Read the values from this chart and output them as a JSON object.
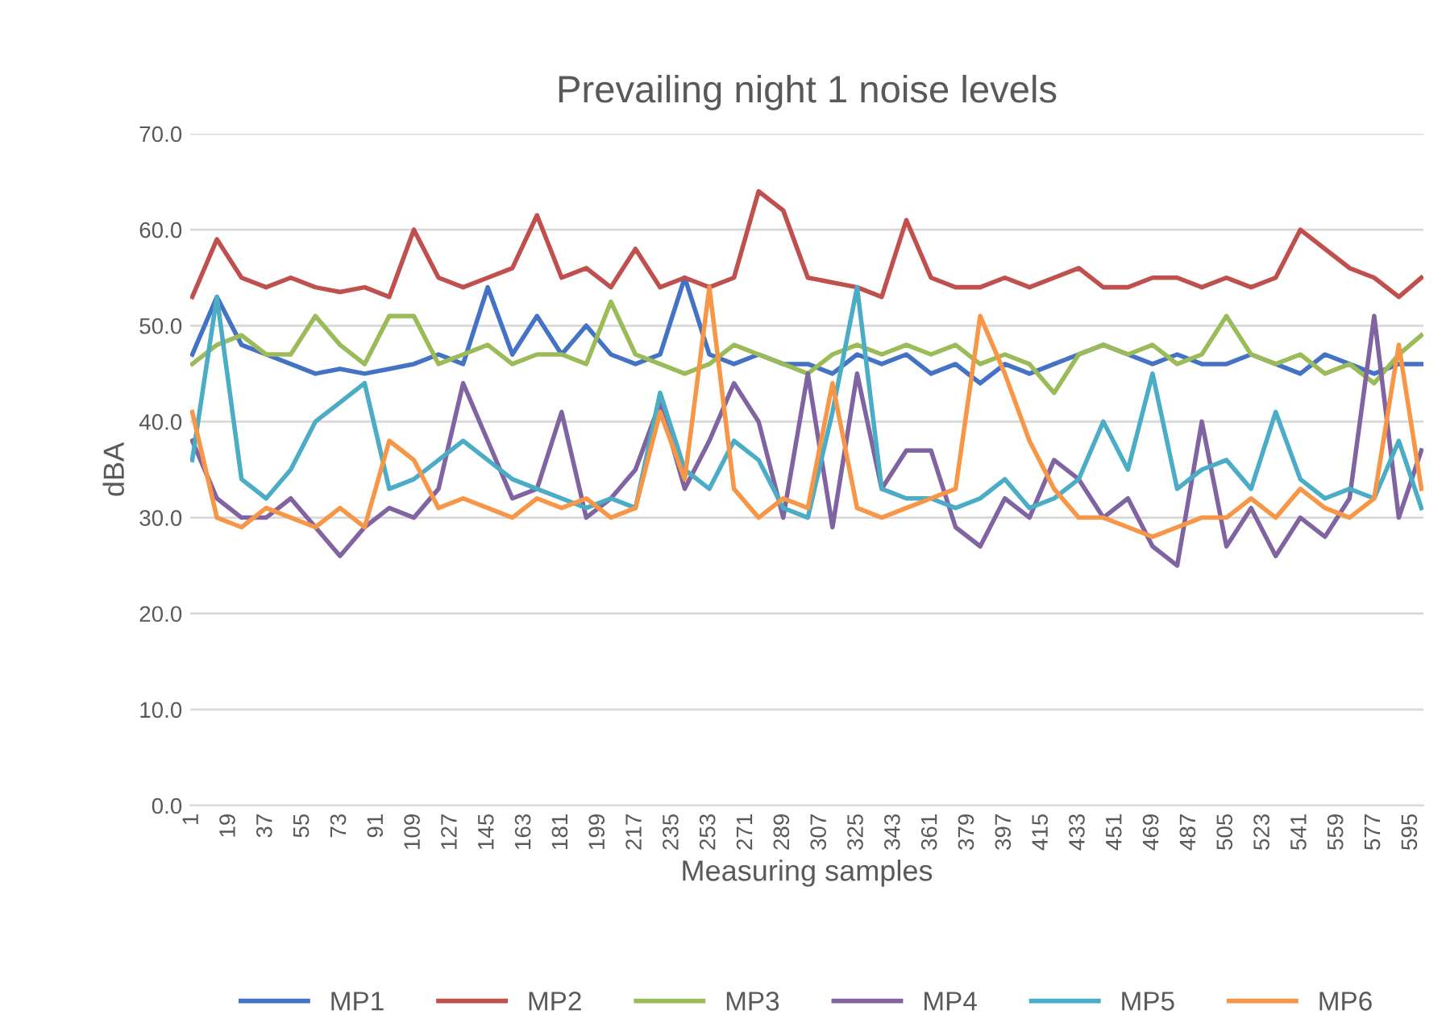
{
  "chart_data": {
    "type": "line",
    "title": "Prevailing night 1 noise levels",
    "xlabel": "Measuring samples",
    "ylabel": "dBA",
    "x": [
      1,
      13,
      25,
      37,
      49,
      61,
      73,
      85,
      97,
      109,
      121,
      133,
      145,
      157,
      169,
      181,
      193,
      205,
      217,
      229,
      241,
      253,
      265,
      277,
      289,
      301,
      313,
      325,
      337,
      349,
      361,
      373,
      385,
      397,
      409,
      421,
      433,
      445,
      457,
      469,
      481,
      493,
      505,
      517,
      529,
      541,
      553,
      565,
      577,
      589,
      600
    ],
    "series": [
      {
        "name": "MP1",
        "color": "#4472c4",
        "values": [
          47,
          53,
          48,
          47,
          46,
          45,
          45.5,
          45,
          45.5,
          46,
          47,
          46,
          54,
          47,
          51,
          47,
          50,
          47,
          46,
          47,
          55,
          47,
          46,
          47,
          46,
          46,
          45,
          47,
          46,
          47,
          45,
          46,
          44,
          46,
          45,
          46,
          47,
          48,
          47,
          46,
          47,
          46,
          46,
          47,
          46,
          45,
          47,
          46,
          45,
          46,
          46
        ]
      },
      {
        "name": "MP2",
        "color": "#c0504d",
        "values": [
          53,
          59,
          55,
          54,
          55,
          54,
          53.5,
          54,
          53,
          60,
          55,
          54,
          55,
          56,
          61.5,
          55,
          56,
          54,
          58,
          54,
          55,
          54,
          55,
          64,
          62,
          55,
          54.5,
          54,
          53,
          61,
          55,
          54,
          54,
          55,
          54,
          55,
          56,
          54,
          54,
          55,
          55,
          54,
          55,
          54,
          55,
          60,
          58,
          56,
          55,
          53,
          55
        ]
      },
      {
        "name": "MP3",
        "color": "#9bbb59",
        "values": [
          46,
          48,
          49,
          47,
          47,
          51,
          48,
          46,
          51,
          51,
          46,
          47,
          48,
          46,
          47,
          47,
          46,
          52.5,
          47,
          46,
          45,
          46,
          48,
          47,
          46,
          45,
          47,
          48,
          47,
          48,
          47,
          48,
          46,
          47,
          46,
          43,
          47,
          48,
          47,
          48,
          46,
          47,
          51,
          47,
          46,
          47,
          45,
          46,
          44,
          47,
          49
        ]
      },
      {
        "name": "MP4",
        "color": "#8064a2",
        "values": [
          38,
          32,
          30,
          30,
          32,
          29,
          26,
          29,
          31,
          30,
          33,
          44,
          38,
          32,
          33,
          41,
          30,
          32,
          35,
          42,
          33,
          38,
          44,
          40,
          30,
          45,
          29,
          45,
          33,
          37,
          37,
          29,
          27,
          32,
          30,
          36,
          34,
          30,
          32,
          27,
          25,
          40,
          27,
          31,
          26,
          30,
          28,
          32,
          51,
          30,
          37
        ]
      },
      {
        "name": "MP5",
        "color": "#4bacc6",
        "values": [
          36,
          53,
          34,
          32,
          35,
          40,
          42,
          44,
          33,
          34,
          36,
          38,
          36,
          34,
          33,
          32,
          31,
          32,
          31,
          43,
          35,
          33,
          38,
          36,
          31,
          30,
          41,
          54,
          33,
          32,
          32,
          31,
          32,
          34,
          31,
          32,
          34,
          40,
          35,
          45,
          33,
          35,
          36,
          33,
          41,
          34,
          32,
          33,
          32,
          38,
          31
        ]
      },
      {
        "name": "MP6",
        "color": "#f79646",
        "values": [
          41,
          30,
          29,
          31,
          30,
          29,
          31,
          29,
          38,
          36,
          31,
          32,
          31,
          30,
          32,
          31,
          32,
          30,
          31,
          41,
          34,
          54,
          33,
          30,
          32,
          31,
          44,
          31,
          30,
          31,
          32,
          33,
          51,
          45,
          38,
          33,
          30,
          30,
          29,
          28,
          29,
          30,
          30,
          32,
          30,
          33,
          31,
          30,
          32,
          48,
          33
        ]
      }
    ],
    "xlim": [
      0,
      601
    ],
    "xticks": [
      1,
      19,
      37,
      55,
      73,
      91,
      109,
      127,
      145,
      163,
      181,
      199,
      217,
      235,
      253,
      271,
      289,
      307,
      325,
      343,
      361,
      379,
      397,
      415,
      433,
      451,
      469,
      487,
      505,
      523,
      541,
      559,
      577,
      595
    ],
    "ylim": [
      0,
      70
    ],
    "yticks": [
      {
        "value": 0,
        "label": "0.0"
      },
      {
        "value": 10,
        "label": "10.0"
      },
      {
        "value": 20,
        "label": "20.0"
      },
      {
        "value": 30,
        "label": "30.0"
      },
      {
        "value": 40,
        "label": "40.0"
      },
      {
        "value": 50,
        "label": "50.0"
      },
      {
        "value": 60,
        "label": "60.0"
      },
      {
        "value": 70,
        "label": "70.0"
      }
    ],
    "grid": "y",
    "legend": "bottom",
    "marker": "none",
    "line_style": "solid"
  }
}
